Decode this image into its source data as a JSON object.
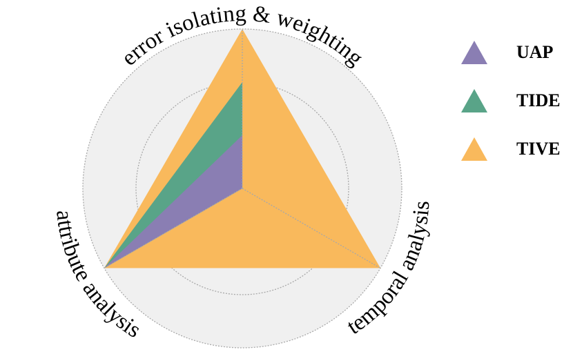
{
  "chart_data": {
    "type": "radar",
    "axes": [
      "error isolating & weighting",
      "temporal analysis",
      "attribute analysis"
    ],
    "rmax": 3,
    "grid_levels": [
      1,
      2,
      3
    ],
    "grid": true,
    "legend_placement": "right",
    "series": [
      {
        "name": "TIVE",
        "values": [
          3,
          3,
          3
        ],
        "color": "#f9b95c"
      },
      {
        "name": "TIDE",
        "values": [
          2,
          0,
          3
        ],
        "color": "#59a488"
      },
      {
        "name": "UAP",
        "values": [
          1,
          0,
          3
        ],
        "color": "#8a7eb3"
      }
    ]
  },
  "legend": {
    "items": [
      {
        "label": "UAP",
        "color": "#8a7eb3"
      },
      {
        "label": "TIDE",
        "color": "#59a488"
      },
      {
        "label": "TIVE",
        "color": "#f9b95c"
      }
    ]
  }
}
